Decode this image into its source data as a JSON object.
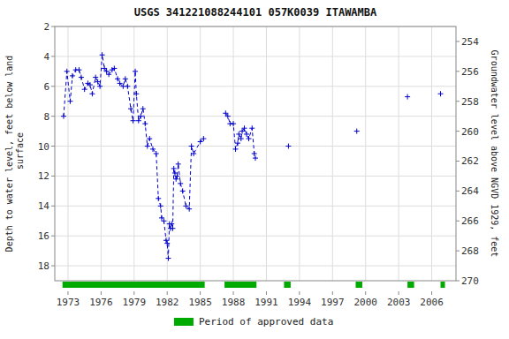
{
  "chart_data": {
    "type": "line",
    "title": "USGS 341221088244101 057K0039  ITAWAMBA",
    "ylabel": "Depth to water level, feet below land\n surface",
    "y2label": "Groundwater level above NGVD 1929, feet",
    "xlim": [
      1971.8,
      2008.2
    ],
    "xticks": [
      1973,
      1976,
      1979,
      1982,
      1985,
      1988,
      1991,
      1994,
      1997,
      2000,
      2003,
      2006
    ],
    "ylim": [
      19,
      2
    ],
    "yticks": [
      2,
      4,
      6,
      8,
      10,
      12,
      14,
      16,
      18
    ],
    "y2lim": [
      270,
      253
    ],
    "y2ticks": [
      270,
      268,
      266,
      264,
      262,
      260,
      258,
      256,
      254
    ],
    "grid": true,
    "legend": "bottom",
    "x": [
      1972.6,
      1972.9,
      1973.2,
      1973.4,
      1973.7,
      1974.0,
      1974.2,
      1974.5,
      1974.8,
      1975.0,
      1975.2,
      1975.5,
      1975.7,
      1975.9,
      1976.1,
      1976.3,
      1976.5,
      1976.7,
      1977.0,
      1977.2,
      1977.5,
      1977.7,
      1978.0,
      1978.2,
      1978.4,
      1978.7,
      1978.9,
      1979.1,
      1979.2,
      1979.4,
      1979.6,
      1979.8,
      1980.0,
      1980.2,
      1980.4,
      1980.7,
      1981.0,
      1981.2,
      1981.4,
      1981.5,
      1981.7,
      1981.9,
      1982.0,
      1982.1,
      1982.2,
      1982.3,
      1982.4,
      1982.5,
      1982.6,
      1982.7,
      1982.8,
      1982.9,
      1983.0,
      1983.2,
      1983.4,
      1983.7,
      1984.0,
      1984.2,
      1984.4,
      1985.0,
      1985.3,
      null,
      1987.3,
      1987.5,
      1987.7,
      1988.0,
      1988.2,
      1988.4,
      1988.5,
      1988.7,
      1988.8,
      1989.0,
      1989.2,
      1989.4,
      1989.7,
      1989.9,
      1990.0,
      null,
      1993.0,
      null,
      1999.2,
      null,
      2003.8,
      null,
      2006.8
    ],
    "series": [
      {
        "color": "#0000CC",
        "line_style": "dashed",
        "marker": "plus",
        "values": [
          8.0,
          5.0,
          7.0,
          5.3,
          4.9,
          4.9,
          5.4,
          6.2,
          5.8,
          5.9,
          6.5,
          5.4,
          5.7,
          6.0,
          3.9,
          4.8,
          5.0,
          5.2,
          4.9,
          4.8,
          5.5,
          5.8,
          6.0,
          5.5,
          6.0,
          7.5,
          8.3,
          5.0,
          6.5,
          8.3,
          8.0,
          7.5,
          8.5,
          10.0,
          9.5,
          10.2,
          10.5,
          13.5,
          14.0,
          14.8,
          15.0,
          16.3,
          16.5,
          17.5,
          15.2,
          15.5,
          15.2,
          15.5,
          11.5,
          11.8,
          12.2,
          12.0,
          11.2,
          12.5,
          13.0,
          14.0,
          14.2,
          10.0,
          10.5,
          9.7,
          9.5,
          null,
          7.8,
          8.0,
          8.5,
          8.5,
          10.2,
          9.8,
          9.2,
          9.5,
          9.0,
          8.8,
          9.2,
          9.5,
          8.8,
          10.5,
          10.8,
          null,
          10.0,
          null,
          9.0,
          null,
          6.7,
          null,
          6.5
        ]
      },
      {
        "name": "Period of approved data",
        "type": "span",
        "color": "#00AA00",
        "x": [
          [
            1972.5,
            1985.4
          ],
          [
            1987.2,
            1990.1
          ],
          [
            1992.6,
            1993.2
          ],
          [
            1999.1,
            1999.7
          ],
          [
            2003.8,
            2004.4
          ],
          [
            2006.8,
            2007.2
          ]
        ]
      }
    ]
  }
}
